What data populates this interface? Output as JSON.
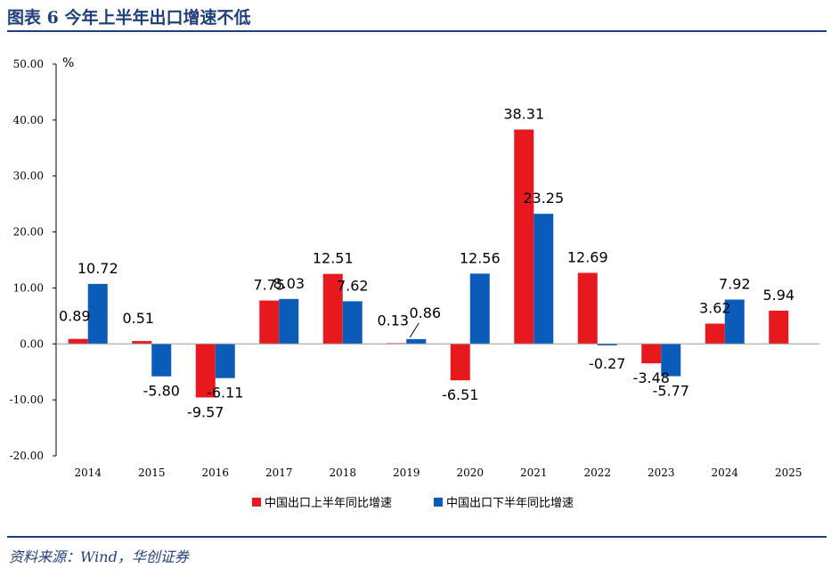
{
  "header": {
    "title": "图表 6   今年上半年出口增速不低"
  },
  "footer": {
    "source": "资料来源：Wind，华创证券"
  },
  "colors": {
    "accent": "#1f3f7a",
    "series1": "#e8191e",
    "series2": "#0a5cb8"
  },
  "chart_data": {
    "type": "bar",
    "title": "",
    "xlabel": "",
    "ylabel": "%",
    "ylim": [
      -20,
      50
    ],
    "yticks": [
      "50.00",
      "40.00",
      "30.00",
      "20.00",
      "10.00",
      "0.00",
      "-10.00",
      "-20.00"
    ],
    "grid": false,
    "legend_position": "bottom",
    "categories": [
      "2014",
      "2015",
      "2016",
      "2017",
      "2018",
      "2019",
      "2020",
      "2021",
      "2022",
      "2023",
      "2024",
      "2025"
    ],
    "series": [
      {
        "name": "中国出口上半年同比增速",
        "values": [
          0.89,
          0.51,
          -9.57,
          7.75,
          12.51,
          0.13,
          -6.51,
          38.31,
          12.69,
          -3.48,
          3.62,
          5.94
        ],
        "labels": [
          "0.89",
          "0.51",
          "-9.57",
          "7.75",
          "12.51",
          "0.13",
          "-6.51",
          "38.31",
          "12.69",
          "-3.48",
          "3.62",
          "5.94"
        ]
      },
      {
        "name": "中国出口下半年同比增速",
        "values": [
          10.72,
          -5.8,
          -6.11,
          8.03,
          7.62,
          0.86,
          12.56,
          23.25,
          -0.27,
          -5.77,
          7.92,
          null
        ],
        "labels": [
          "10.72",
          "-5.80",
          "-6.11",
          "8.03",
          "7.62",
          "0.86",
          "12.56",
          "23.25",
          "-0.27",
          "-5.77",
          "7.92",
          ""
        ]
      }
    ]
  }
}
